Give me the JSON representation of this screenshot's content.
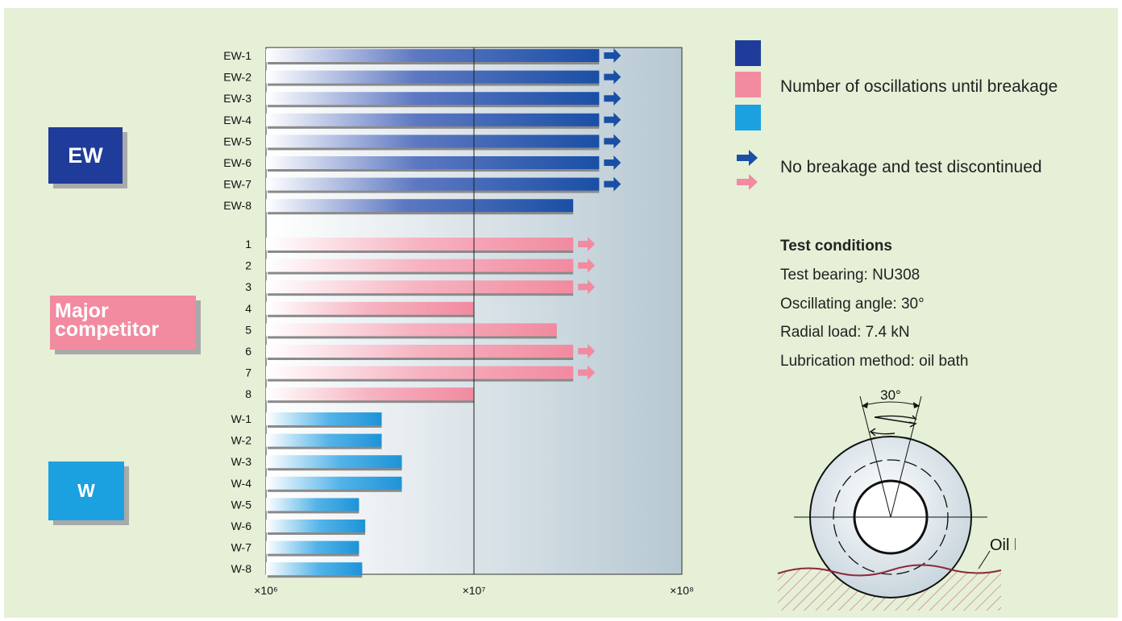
{
  "chart_data": {
    "type": "bar",
    "orientation": "horizontal",
    "x_scale": "log",
    "xlim": [
      1000000,
      100000000
    ],
    "x_tick_labels": [
      "×10⁶",
      "×10⁷",
      "×10⁸"
    ],
    "title": "",
    "xlabel": "",
    "ylabel": "",
    "groups": [
      {
        "name": "EW",
        "color": "#1f3c9a",
        "bars": [
          {
            "label": "EW-1",
            "value": 40000000,
            "discontinued": true
          },
          {
            "label": "EW-2",
            "value": 40000000,
            "discontinued": true
          },
          {
            "label": "EW-3",
            "value": 40000000,
            "discontinued": true
          },
          {
            "label": "EW-4",
            "value": 40000000,
            "discontinued": true
          },
          {
            "label": "EW-5",
            "value": 40000000,
            "discontinued": true
          },
          {
            "label": "EW-6",
            "value": 40000000,
            "discontinued": true
          },
          {
            "label": "EW-7",
            "value": 40000000,
            "discontinued": true
          },
          {
            "label": "EW-8",
            "value": 30000000,
            "discontinued": false
          }
        ]
      },
      {
        "name": "Major competitor",
        "color": "#f28aa0",
        "bars": [
          {
            "label": "1",
            "value": 30000000,
            "discontinued": true
          },
          {
            "label": "2",
            "value": 30000000,
            "discontinued": true
          },
          {
            "label": "3",
            "value": 30000000,
            "discontinued": true
          },
          {
            "label": "4",
            "value": 10000000,
            "discontinued": false
          },
          {
            "label": "5",
            "value": 25000000,
            "discontinued": false
          },
          {
            "label": "6",
            "value": 30000000,
            "discontinued": true
          },
          {
            "label": "7",
            "value": 30000000,
            "discontinued": true
          },
          {
            "label": "8",
            "value": 10000000,
            "discontinued": false
          }
        ]
      },
      {
        "name": "W",
        "color": "#1ba1e0",
        "bars": [
          {
            "label": "W-1",
            "value": 3600000,
            "discontinued": false
          },
          {
            "label": "W-2",
            "value": 3600000,
            "discontinued": false
          },
          {
            "label": "W-3",
            "value": 4500000,
            "discontinued": false
          },
          {
            "label": "W-4",
            "value": 4500000,
            "discontinued": false
          },
          {
            "label": "W-5",
            "value": 2800000,
            "discontinued": false
          },
          {
            "label": "W-6",
            "value": 3000000,
            "discontinued": false
          },
          {
            "label": "W-7",
            "value": 2800000,
            "discontinued": false
          },
          {
            "label": "W-8",
            "value": 2900000,
            "discontinued": false
          }
        ]
      }
    ]
  },
  "group_labels": {
    "ew": "EW",
    "competitor_line1": "Major",
    "competitor_line2": "competitor",
    "w": "W"
  },
  "legend": {
    "breakage_label": "Number of oscillations until breakage",
    "discontinued_label": "No breakage and test discontinued",
    "colors": [
      "#1f3c9a",
      "#f28aa0",
      "#1ba1e0"
    ]
  },
  "test_conditions": {
    "title": "Test conditions",
    "lines": [
      "Test bearing: NU308",
      "Oscillating angle: 30°",
      "Radial load: 7.4 kN",
      "Lubrication method: oil bath"
    ]
  },
  "diagram": {
    "angle_label": "30°",
    "oil_label": "Oil level"
  }
}
